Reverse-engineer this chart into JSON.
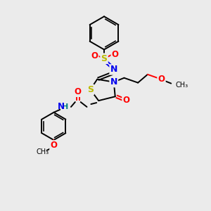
{
  "bg_color": "#ebebeb",
  "C": "#000000",
  "N": "#0000ee",
  "O": "#ff0000",
  "S": "#bbbb00",
  "H": "#008080",
  "lw": 1.4
}
